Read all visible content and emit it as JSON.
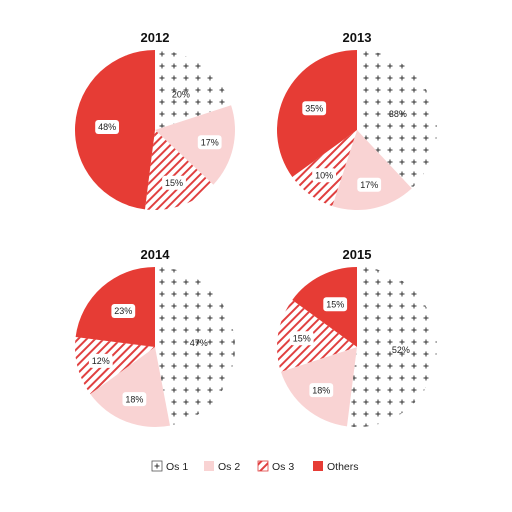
{
  "colors": {
    "os1_mark": "#333333",
    "os2": "#f9d3d3",
    "os3_stripe": "#e04040",
    "others": "#e63c35",
    "label_bg": "#ffffff"
  },
  "chart_data": {
    "type": "pie",
    "legend_position": "bottom",
    "series": [
      {
        "name": "Os 1",
        "pattern": "plus"
      },
      {
        "name": "Os 2",
        "pattern": "solid-light"
      },
      {
        "name": "Os 3",
        "pattern": "diagonal-stripes"
      },
      {
        "name": "Others",
        "pattern": "solid-red"
      }
    ],
    "pies": [
      {
        "title": "2012",
        "values": [
          20,
          17,
          15,
          48
        ],
        "labels": [
          "20%",
          "17%",
          "15%",
          "48%"
        ]
      },
      {
        "title": "2013",
        "values": [
          38,
          17,
          10,
          35
        ],
        "labels": [
          "38%",
          "17%",
          "10%",
          "35%"
        ]
      },
      {
        "title": "2014",
        "values": [
          47,
          18,
          12,
          23
        ],
        "labels": [
          "47%",
          "18%",
          "12%",
          "23%"
        ]
      },
      {
        "title": "2015",
        "values": [
          52,
          18,
          15,
          15
        ],
        "labels": [
          "52%",
          "18%",
          "15%",
          "15%"
        ]
      }
    ]
  }
}
